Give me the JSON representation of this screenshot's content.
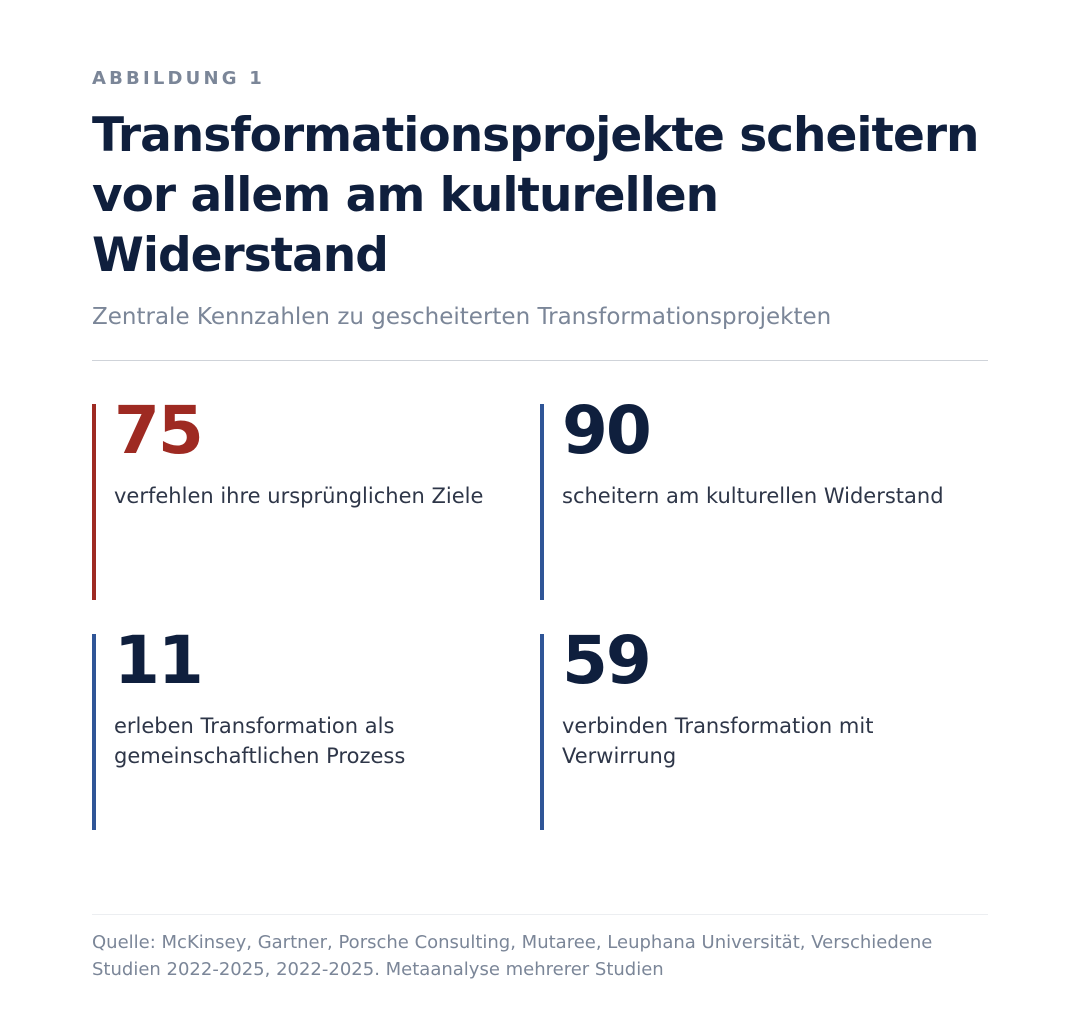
{
  "figure": {
    "eyebrow": "ABBILDUNG 1",
    "title": "Transformationsprojekte scheitern vor allem am kulturellen Widerstand",
    "subtitle": "Zentrale Kennzahlen zu gescheiterten Transformationsprojekten"
  },
  "stats": [
    {
      "value": "75",
      "label": "verfehlen ihre ursprünglichen Ziele",
      "color": "#9e2a22"
    },
    {
      "value": "90",
      "label": "scheitern am kulturellen Widerstand",
      "color": "#0f1f3d"
    },
    {
      "value": "11",
      "label": "erleben Transformation als gemeinschaftlichen Prozess",
      "color": "#0f1f3d"
    },
    {
      "value": "59",
      "label": "verbinden Transformation mit Verwirrung",
      "color": "#0f1f3d"
    }
  ],
  "source": "Quelle: McKinsey, Gartner, Porsche Consulting, Mutaree, Leuphana Universität, Verschiedene Studien 2022-2025, 2022-2025. Metaanalyse mehrerer Studien",
  "colors": {
    "accent_red": "#9e2a22",
    "bar_blue": "#2f5597",
    "navy": "#0f1f3d",
    "muted": "#7b8698"
  }
}
